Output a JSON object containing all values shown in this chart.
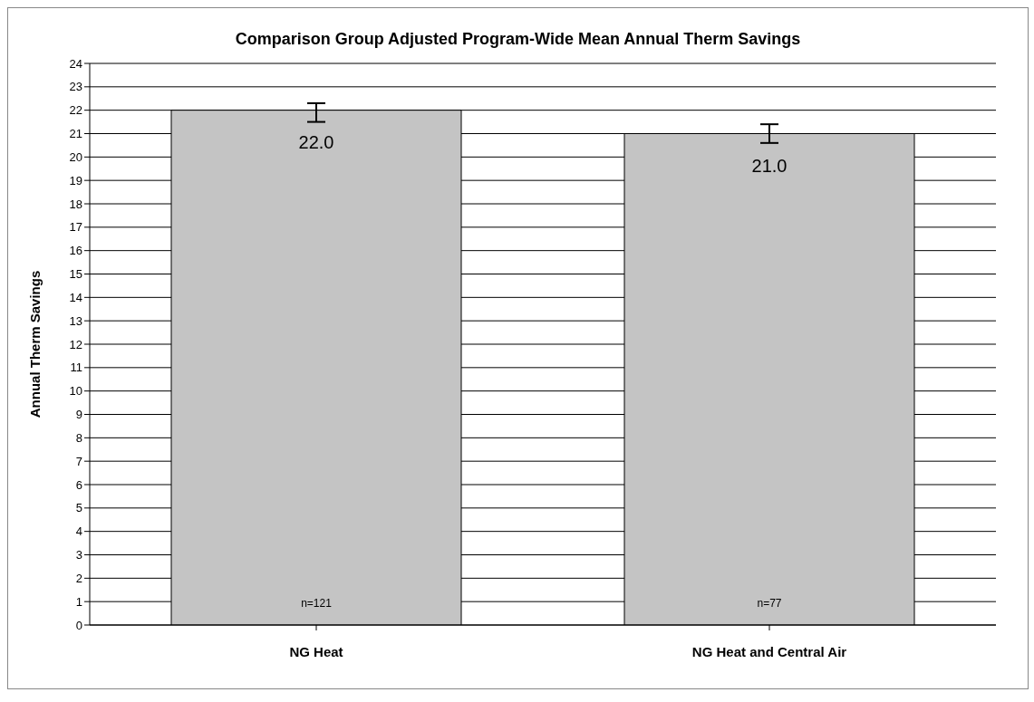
{
  "chart_data": {
    "type": "bar",
    "title": "Comparison Group Adjusted Program-Wide Mean Annual Therm Savings",
    "ylabel": "Annual Therm Savings",
    "categories": [
      "NG Heat",
      "NG Heat and Central Air"
    ],
    "values": [
      22.0,
      21.0
    ],
    "color": "#c4c4c4",
    "errors": [
      [
        21.5,
        22.3
      ],
      [
        20.6,
        21.4
      ]
    ],
    "value_labels": [
      "22.0",
      "21.0"
    ],
    "annotations": [
      "n=121",
      "n=77"
    ],
    "ylim": [
      0,
      24
    ],
    "yticks": [
      0,
      1,
      2,
      3,
      4,
      5,
      6,
      7,
      8,
      9,
      10,
      11,
      12,
      13,
      14,
      15,
      16,
      17,
      18,
      19,
      20,
      21,
      22,
      23,
      24
    ],
    "grid": "y",
    "legend": false
  }
}
